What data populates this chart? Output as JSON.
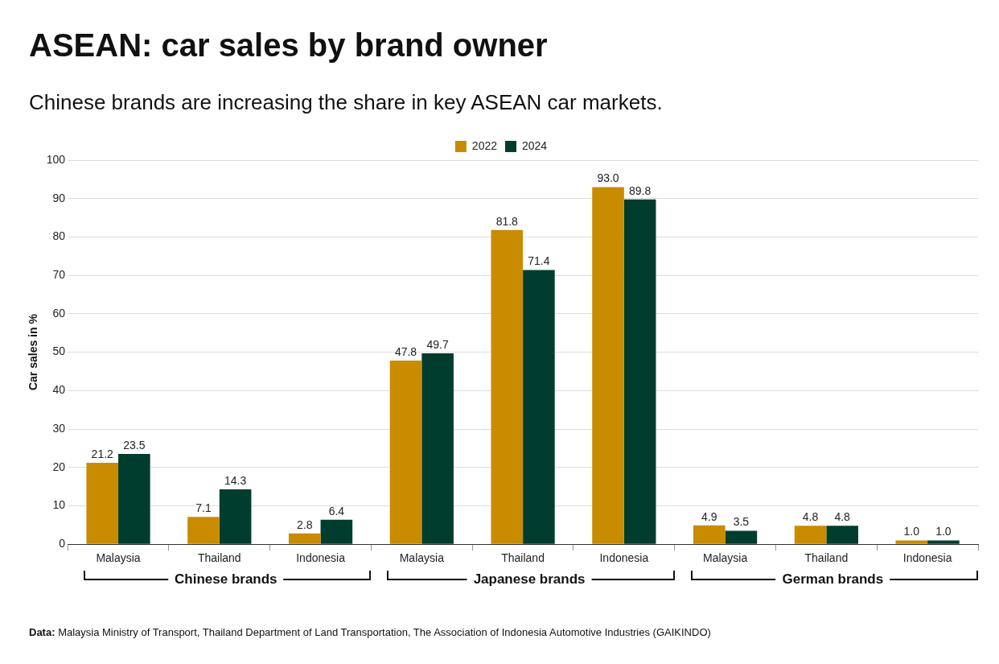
{
  "chart_data": {
    "type": "bar",
    "title": "ASEAN: car sales by brand owner",
    "subtitle": "Chinese brands are increasing the share in key ASEAN car markets.",
    "ylabel": "Car sales in %",
    "categories": [
      "Malaysia",
      "Thailand",
      "Indonesia",
      "Malaysia",
      "Thailand",
      "Indonesia",
      "Malaysia",
      "Thailand",
      "Indonesia"
    ],
    "series": [
      {
        "name": "2022",
        "color": "#c98b00",
        "values": [
          21.2,
          7.1,
          2.8,
          47.8,
          81.8,
          93.0,
          4.9,
          4.8,
          1.0
        ],
        "value_labels": [
          "21.2",
          "7.1",
          "2.8",
          "47.8",
          "81.8",
          "93.0",
          "4.9",
          "4.8",
          "1.0"
        ]
      },
      {
        "name": "2024",
        "color": "#003d2e",
        "values": [
          23.5,
          14.3,
          6.4,
          49.7,
          71.4,
          89.8,
          3.5,
          4.8,
          1.0
        ],
        "value_labels": [
          "23.5",
          "14.3",
          "6.4",
          "49.7",
          "71.4",
          "89.8",
          "3.5",
          "4.8",
          "1.0"
        ]
      }
    ],
    "ylim": [
      0,
      100
    ],
    "yticks": [
      0,
      10,
      20,
      30,
      40,
      50,
      60,
      70,
      80,
      90,
      100
    ],
    "grid": "y",
    "legend": "top",
    "annotations": [
      "Chinese brands",
      "Japanese brands",
      "German brands",
      "Data: Malaysia Ministry of Transport, Thailand Department of Land Transportation, The Association of Indonesia Automotive Industries (GAIKINDO)"
    ]
  }
}
